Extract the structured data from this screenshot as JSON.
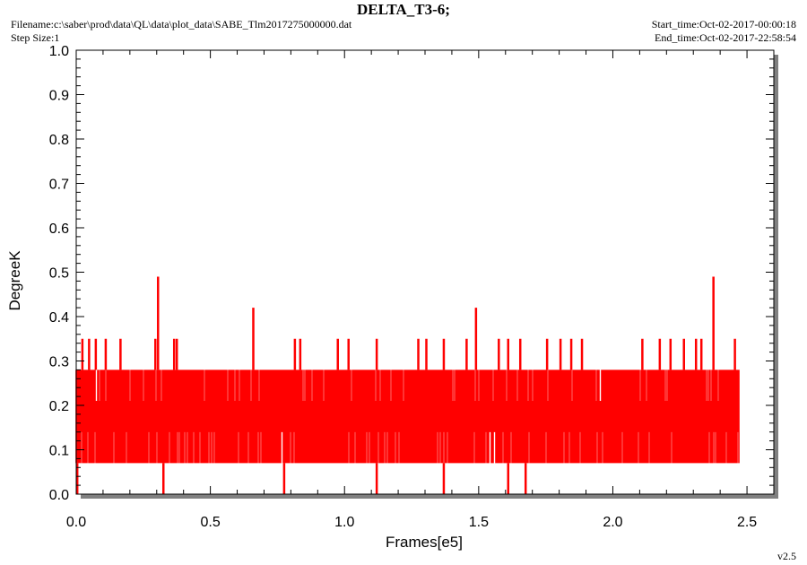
{
  "header": {
    "filename": "Filename:c:\\saber\\prod\\data\\QL\\data\\plot_data\\SABE_Tlm2017275000000.dat",
    "step_size": "Step Size:1",
    "start_time": "Start_time:Oct-02-2017-00:00:18",
    "end_time": "End_time:Oct-02-2017-22:58:54",
    "version": "v2.5"
  },
  "colors": {
    "series": "#ff0000",
    "frame": "#000000",
    "shadow": "#808080"
  },
  "chart_data": {
    "type": "line",
    "title": "DELTA_T3-6;",
    "xlabel": "Frames[e5]",
    "ylabel": "DegreeK",
    "xlim": [
      0,
      2.6
    ],
    "ylim": [
      0,
      1.0
    ],
    "x_ticks": [
      0.0,
      0.5,
      1.0,
      1.5,
      2.0,
      2.5
    ],
    "x_tick_labels": [
      "0.0",
      "0.5",
      "1.0",
      "1.5",
      "2.0",
      "2.5"
    ],
    "y_ticks": [
      0.0,
      0.1,
      0.2,
      0.3,
      0.4,
      0.5,
      0.6,
      0.7,
      0.8,
      0.9,
      1.0
    ],
    "y_tick_labels": [
      "0.0",
      "0.1",
      "0.2",
      "0.3",
      "0.4",
      "0.5",
      "0.6",
      "0.7",
      "0.8",
      "0.9",
      "1.0"
    ],
    "grid": false,
    "series": [
      {
        "color": "#ff0000",
        "x_end": 2.47,
        "band_low": 0.07,
        "band_high": 0.28,
        "core_low": 0.14,
        "core_high": 0.21,
        "spikes": [
          {
            "x": 0.004,
            "y": 0.28
          },
          {
            "x": 0.023,
            "y": 0.35
          },
          {
            "x": 0.048,
            "y": 0.35
          },
          {
            "x": 0.073,
            "y": 0.35
          },
          {
            "x": 0.11,
            "y": 0.35
          },
          {
            "x": 0.165,
            "y": 0.35
          },
          {
            "x": 0.295,
            "y": 0.35
          },
          {
            "x": 0.305,
            "y": 0.49
          },
          {
            "x": 0.365,
            "y": 0.35
          },
          {
            "x": 0.375,
            "y": 0.35
          },
          {
            "x": 0.66,
            "y": 0.42
          },
          {
            "x": 0.815,
            "y": 0.35
          },
          {
            "x": 0.835,
            "y": 0.35
          },
          {
            "x": 0.975,
            "y": 0.35
          },
          {
            "x": 1.015,
            "y": 0.35
          },
          {
            "x": 1.12,
            "y": 0.35
          },
          {
            "x": 1.275,
            "y": 0.35
          },
          {
            "x": 1.305,
            "y": 0.35
          },
          {
            "x": 1.37,
            "y": 0.35
          },
          {
            "x": 1.455,
            "y": 0.35
          },
          {
            "x": 1.49,
            "y": 0.42
          },
          {
            "x": 1.575,
            "y": 0.35
          },
          {
            "x": 1.61,
            "y": 0.35
          },
          {
            "x": 1.655,
            "y": 0.35
          },
          {
            "x": 1.755,
            "y": 0.35
          },
          {
            "x": 1.805,
            "y": 0.35
          },
          {
            "x": 1.845,
            "y": 0.35
          },
          {
            "x": 1.885,
            "y": 0.35
          },
          {
            "x": 2.11,
            "y": 0.35
          },
          {
            "x": 2.175,
            "y": 0.35
          },
          {
            "x": 2.215,
            "y": 0.35
          },
          {
            "x": 2.265,
            "y": 0.35
          },
          {
            "x": 2.31,
            "y": 0.35
          },
          {
            "x": 2.33,
            "y": 0.35
          },
          {
            "x": 2.375,
            "y": 0.49
          },
          {
            "x": 2.455,
            "y": 0.35
          }
        ],
        "dips": [
          {
            "x": 0.004,
            "y": 0.0
          },
          {
            "x": 0.325,
            "y": 0.0
          },
          {
            "x": 0.775,
            "y": 0.0
          },
          {
            "x": 1.12,
            "y": 0.0
          },
          {
            "x": 1.37,
            "y": 0.0
          },
          {
            "x": 1.61,
            "y": 0.0
          },
          {
            "x": 1.675,
            "y": 0.0
          }
        ]
      }
    ]
  }
}
